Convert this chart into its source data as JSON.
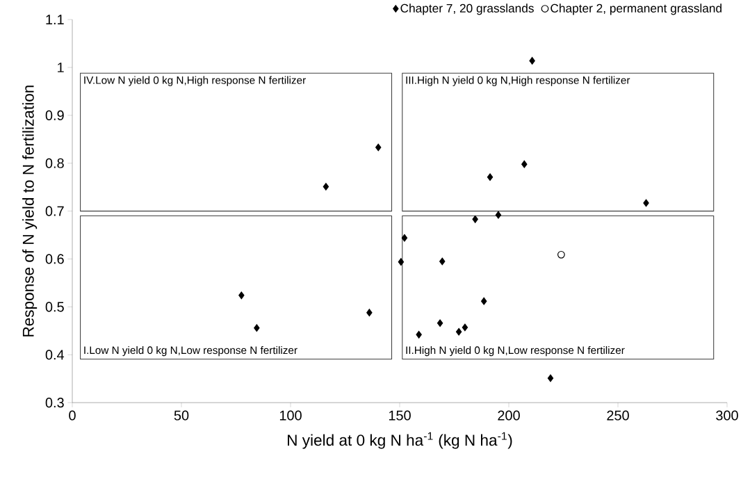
{
  "chart_data": {
    "type": "scatter",
    "xlabel": "N yield at 0 kg N ha$^{-1}$  (kg N ha$^{-1}$)",
    "ylabel": "Response of N yield to N fertilization",
    "series": [
      {
        "name": "Chapter 7, 20 grasslands",
        "color": "#000000",
        "marker": "diamond",
        "x": [
          210.7,
          140.2,
          116.2,
          191.4,
          207.1,
          262.9,
          184.6,
          195.2,
          152.2,
          150.6,
          169.5,
          77.5,
          84.5,
          136.1,
          188.6,
          158.8,
          168.5,
          177.1,
          179.9,
          219.1
        ],
        "values": [
          1.014,
          0.833,
          0.751,
          0.771,
          0.798,
          0.717,
          0.683,
          0.692,
          0.644,
          0.594,
          0.595,
          0.524,
          0.456,
          0.488,
          0.512,
          0.442,
          0.466,
          0.448,
          0.457,
          0.351
        ]
      },
      {
        "name": "Chapter 2, permanent grassland",
        "color": "#000000",
        "marker": "circle",
        "x": [
          224.0
        ],
        "values": [
          0.609
        ]
      }
    ],
    "annotations": [
      "IV.Low N yield 0 kg N,High response N fertilizer",
      "III.High N yield 0 kg N,High response N fertilizer",
      "I.Low N yield 0 kg N,Low response N fertilizer",
      "II.High N yield 0 kg N,Low response N fertilizer"
    ],
    "xlim": [
      0,
      300
    ],
    "xticks": [
      0,
      50,
      100,
      150,
      200,
      250,
      300
    ],
    "ylim": [
      0.3,
      1.1
    ],
    "yticks": [
      0.3,
      0.4,
      0.5,
      0.6,
      0.7,
      0.8,
      0.9,
      1,
      1.1
    ],
    "grid": false,
    "legend": "top right"
  }
}
